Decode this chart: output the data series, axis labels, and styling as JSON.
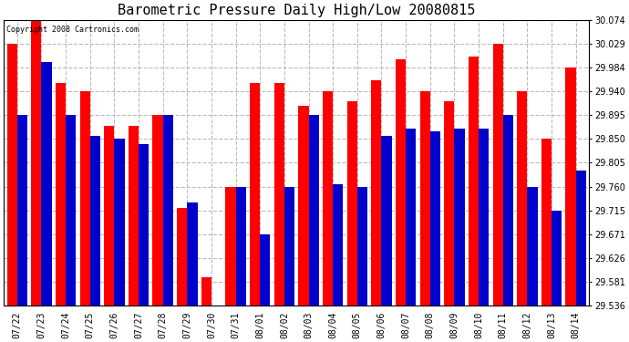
{
  "title": "Barometric Pressure Daily High/Low 20080815",
  "copyright": "Copyright 2008 Cartronics.com",
  "categories": [
    "07/22",
    "07/23",
    "07/24",
    "07/25",
    "07/26",
    "07/27",
    "07/28",
    "07/29",
    "07/30",
    "07/31",
    "08/01",
    "08/02",
    "08/03",
    "08/04",
    "08/05",
    "08/06",
    "08/07",
    "08/08",
    "08/09",
    "08/10",
    "08/11",
    "08/12",
    "08/13",
    "08/14"
  ],
  "highs": [
    30.029,
    30.074,
    29.955,
    29.94,
    29.875,
    29.875,
    29.895,
    29.72,
    29.59,
    29.76,
    29.955,
    29.955,
    29.912,
    29.94,
    29.92,
    29.96,
    30.0,
    29.94,
    29.92,
    30.005,
    30.029,
    29.94,
    29.85,
    29.984
  ],
  "lows": [
    29.895,
    29.995,
    29.895,
    29.855,
    29.85,
    29.84,
    29.895,
    29.73,
    29.536,
    29.76,
    29.671,
    29.76,
    29.895,
    29.765,
    29.76,
    29.855,
    29.87,
    29.865,
    29.87,
    29.87,
    29.895,
    29.76,
    29.715,
    29.79
  ],
  "bar_color_high": "#ff0000",
  "bar_color_low": "#0000cc",
  "background_color": "#ffffff",
  "grid_color": "#bbbbbb",
  "yticks": [
    29.536,
    29.581,
    29.626,
    29.671,
    29.715,
    29.76,
    29.805,
    29.85,
    29.895,
    29.94,
    29.984,
    30.029,
    30.074
  ],
  "ymin": 29.536,
  "ymax": 30.074,
  "title_fontsize": 11,
  "tick_fontsize": 7,
  "bar_width": 0.42
}
